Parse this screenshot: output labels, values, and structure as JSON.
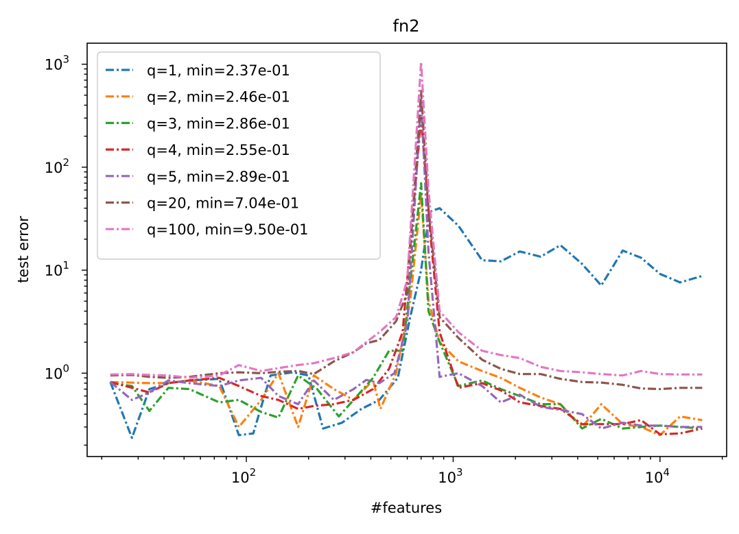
{
  "chart_data": {
    "type": "line",
    "title": "fn2",
    "xlabel": "#features",
    "ylabel": "test error",
    "xscale": "log",
    "yscale": "log",
    "xlim": [
      17,
      21000
    ],
    "ylim": [
      0.155,
      1600
    ],
    "grid": false,
    "legend_position": "top-left",
    "x_ticks": [
      {
        "value": 100,
        "base": "10",
        "exp": "2"
      },
      {
        "value": 1000,
        "base": "10",
        "exp": "3"
      },
      {
        "value": 10000,
        "base": "10",
        "exp": "4"
      }
    ],
    "y_ticks": [
      {
        "value": 1,
        "base": "10",
        "exp": "0"
      },
      {
        "value": 10,
        "base": "10",
        "exp": "1"
      },
      {
        "value": 100,
        "base": "10",
        "exp": "2"
      },
      {
        "value": 1000,
        "base": "10",
        "exp": "3"
      }
    ],
    "series": [
      {
        "name": "q=1, min=2.37e-01",
        "color": "#1f77b4",
        "points": [
          [
            22,
            0.82
          ],
          [
            28,
            0.235
          ],
          [
            34,
            0.7
          ],
          [
            42,
            0.8
          ],
          [
            53,
            0.85
          ],
          [
            74,
            0.88
          ],
          [
            92,
            0.25
          ],
          [
            108,
            0.26
          ],
          [
            131,
            0.95
          ],
          [
            168,
            1.02
          ],
          [
            200,
            0.95
          ],
          [
            235,
            0.29
          ],
          [
            290,
            0.33
          ],
          [
            360,
            0.45
          ],
          [
            440,
            0.55
          ],
          [
            540,
            0.9
          ],
          [
            620,
            3.5
          ],
          [
            700,
            10
          ],
          [
            770,
            37
          ],
          [
            860,
            40
          ],
          [
            1060,
            27
          ],
          [
            1380,
            12.5
          ],
          [
            1700,
            12.2
          ],
          [
            2100,
            15.2
          ],
          [
            2650,
            13.5
          ],
          [
            3300,
            17.5
          ],
          [
            4200,
            11.5
          ],
          [
            5200,
            7.1
          ],
          [
            6600,
            15.5
          ],
          [
            8100,
            13.2
          ],
          [
            10000,
            9.2
          ],
          [
            12500,
            7.6
          ],
          [
            16000,
            8.8
          ]
        ]
      },
      {
        "name": "q=2, min=2.46e-01",
        "color": "#ff7f0e",
        "points": [
          [
            22,
            0.82
          ],
          [
            34,
            0.8
          ],
          [
            42,
            0.8
          ],
          [
            53,
            0.85
          ],
          [
            74,
            0.75
          ],
          [
            92,
            0.3
          ],
          [
            118,
            0.55
          ],
          [
            143,
            1.0
          ],
          [
            178,
            0.3
          ],
          [
            212,
            0.95
          ],
          [
            265,
            0.7
          ],
          [
            330,
            0.55
          ],
          [
            410,
            0.85
          ],
          [
            445,
            0.45
          ],
          [
            530,
            1.0
          ],
          [
            620,
            5
          ],
          [
            700,
            55
          ],
          [
            760,
            5
          ],
          [
            860,
            2.0
          ],
          [
            1060,
            1.3
          ],
          [
            1380,
            1.05
          ],
          [
            1700,
            0.9
          ],
          [
            2100,
            0.72
          ],
          [
            2650,
            0.58
          ],
          [
            3300,
            0.5
          ],
          [
            4200,
            0.3
          ],
          [
            5200,
            0.5
          ],
          [
            6600,
            0.32
          ],
          [
            8100,
            0.3
          ],
          [
            10000,
            0.25
          ],
          [
            12500,
            0.38
          ],
          [
            16000,
            0.35
          ]
        ]
      },
      {
        "name": "q=3, min=2.86e-01",
        "color": "#2ca02c",
        "points": [
          [
            22,
            0.8
          ],
          [
            28,
            0.75
          ],
          [
            34,
            0.43
          ],
          [
            42,
            0.72
          ],
          [
            53,
            0.7
          ],
          [
            74,
            0.52
          ],
          [
            92,
            0.55
          ],
          [
            118,
            0.42
          ],
          [
            143,
            0.37
          ],
          [
            178,
            0.95
          ],
          [
            220,
            0.7
          ],
          [
            280,
            0.38
          ],
          [
            330,
            0.55
          ],
          [
            410,
            0.9
          ],
          [
            490,
            1.65
          ],
          [
            570,
            1.65
          ],
          [
            700,
            70
          ],
          [
            760,
            4
          ],
          [
            860,
            2.0
          ],
          [
            1060,
            0.75
          ],
          [
            1380,
            0.85
          ],
          [
            1700,
            0.7
          ],
          [
            2100,
            0.6
          ],
          [
            2650,
            0.5
          ],
          [
            3300,
            0.5
          ],
          [
            4200,
            0.29
          ],
          [
            5200,
            0.36
          ],
          [
            6600,
            0.29
          ],
          [
            8100,
            0.3
          ],
          [
            10000,
            0.31
          ],
          [
            12500,
            0.3
          ],
          [
            16000,
            0.29
          ]
        ]
      },
      {
        "name": "q=4, min=2.55e-01",
        "color": "#d62728",
        "points": [
          [
            22,
            0.82
          ],
          [
            34,
            0.65
          ],
          [
            42,
            0.8
          ],
          [
            53,
            0.85
          ],
          [
            74,
            0.9
          ],
          [
            92,
            0.75
          ],
          [
            118,
            0.6
          ],
          [
            143,
            0.55
          ],
          [
            178,
            0.45
          ],
          [
            212,
            0.48
          ],
          [
            265,
            0.5
          ],
          [
            330,
            0.55
          ],
          [
            410,
            0.7
          ],
          [
            490,
            1.1
          ],
          [
            570,
            2.5
          ],
          [
            700,
            300
          ],
          [
            780,
            20
          ],
          [
            860,
            2.5
          ],
          [
            1060,
            0.72
          ],
          [
            1380,
            0.8
          ],
          [
            1700,
            0.68
          ],
          [
            2100,
            0.52
          ],
          [
            2650,
            0.48
          ],
          [
            3300,
            0.45
          ],
          [
            4200,
            0.32
          ],
          [
            5200,
            0.32
          ],
          [
            6600,
            0.32
          ],
          [
            8100,
            0.35
          ],
          [
            10000,
            0.255
          ],
          [
            12500,
            0.26
          ],
          [
            16000,
            0.29
          ]
        ]
      },
      {
        "name": "q=5, min=2.89e-01",
        "color": "#9467bd",
        "points": [
          [
            22,
            0.82
          ],
          [
            28,
            0.55
          ],
          [
            34,
            0.65
          ],
          [
            42,
            0.85
          ],
          [
            53,
            0.8
          ],
          [
            74,
            0.75
          ],
          [
            92,
            0.85
          ],
          [
            118,
            0.9
          ],
          [
            143,
            0.6
          ],
          [
            178,
            0.5
          ],
          [
            212,
            0.85
          ],
          [
            265,
            0.55
          ],
          [
            330,
            0.7
          ],
          [
            380,
            0.86
          ],
          [
            440,
            0.8
          ],
          [
            520,
            1.0
          ],
          [
            600,
            3
          ],
          [
            700,
            450
          ],
          [
            760,
            15
          ],
          [
            860,
            0.92
          ],
          [
            1060,
            1.0
          ],
          [
            1380,
            0.75
          ],
          [
            1700,
            0.52
          ],
          [
            2100,
            0.62
          ],
          [
            2650,
            0.47
          ],
          [
            3300,
            0.44
          ],
          [
            4200,
            0.4
          ],
          [
            5200,
            0.29
          ],
          [
            6600,
            0.33
          ],
          [
            8100,
            0.31
          ],
          [
            10000,
            0.31
          ],
          [
            12500,
            0.3
          ],
          [
            16000,
            0.3
          ]
        ]
      },
      {
        "name": "q=20, min=7.04e-01",
        "color": "#8c564b",
        "points": [
          [
            22,
            0.95
          ],
          [
            28,
            0.96
          ],
          [
            34,
            0.92
          ],
          [
            42,
            0.9
          ],
          [
            53,
            0.92
          ],
          [
            74,
            1.0
          ],
          [
            92,
            1.02
          ],
          [
            118,
            1.0
          ],
          [
            143,
            1.03
          ],
          [
            178,
            1.05
          ],
          [
            212,
            0.98
          ],
          [
            265,
            1.3
          ],
          [
            330,
            1.6
          ],
          [
            380,
            1.95
          ],
          [
            440,
            2.1
          ],
          [
            530,
            3.2
          ],
          [
            600,
            6
          ],
          [
            700,
            550
          ],
          [
            760,
            40
          ],
          [
            860,
            3.5
          ],
          [
            1060,
            2.2
          ],
          [
            1380,
            1.35
          ],
          [
            1700,
            1.1
          ],
          [
            2100,
            0.98
          ],
          [
            2650,
            0.98
          ],
          [
            3300,
            0.88
          ],
          [
            4200,
            0.82
          ],
          [
            5200,
            0.81
          ],
          [
            6600,
            0.77
          ],
          [
            8100,
            0.71
          ],
          [
            10000,
            0.7
          ],
          [
            12500,
            0.72
          ],
          [
            16000,
            0.72
          ]
        ]
      },
      {
        "name": "q=100, min=9.50e-01",
        "color": "#e377c2",
        "points": [
          [
            22,
            0.97
          ],
          [
            28,
            0.98
          ],
          [
            34,
            0.96
          ],
          [
            42,
            0.95
          ],
          [
            53,
            0.9
          ],
          [
            74,
            0.95
          ],
          [
            92,
            1.2
          ],
          [
            118,
            1.05
          ],
          [
            143,
            1.12
          ],
          [
            178,
            1.2
          ],
          [
            212,
            1.25
          ],
          [
            265,
            1.4
          ],
          [
            330,
            1.6
          ],
          [
            380,
            2.0
          ],
          [
            440,
            2.5
          ],
          [
            530,
            3.5
          ],
          [
            600,
            8
          ],
          [
            700,
            1050
          ],
          [
            760,
            60
          ],
          [
            860,
            4.0
          ],
          [
            1060,
            2.5
          ],
          [
            1380,
            1.65
          ],
          [
            1700,
            1.5
          ],
          [
            2100,
            1.4
          ],
          [
            2650,
            1.15
          ],
          [
            3300,
            1.05
          ],
          [
            4200,
            1.02
          ],
          [
            5200,
            0.98
          ],
          [
            6600,
            0.95
          ],
          [
            8100,
            1.05
          ],
          [
            10000,
            0.98
          ],
          [
            12500,
            0.97
          ],
          [
            16000,
            0.97
          ]
        ]
      }
    ]
  }
}
